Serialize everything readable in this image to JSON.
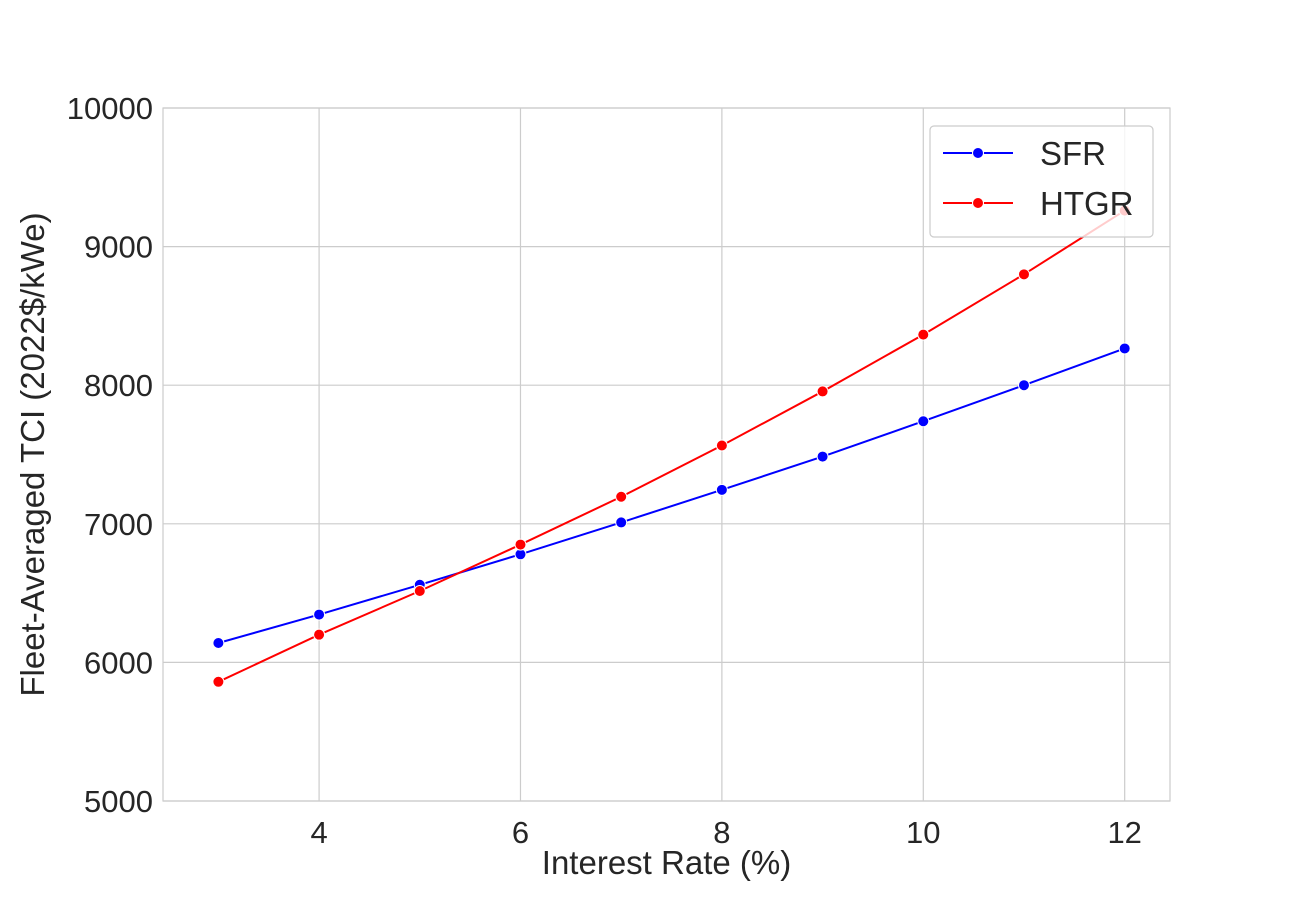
{
  "chart_data": {
    "type": "line",
    "title": "",
    "xlabel": "Interest Rate (%)",
    "ylabel": "Fleet-Averaged TCI (2022$/kWe)",
    "x": [
      3,
      4,
      5,
      6,
      7,
      8,
      9,
      10,
      11,
      12
    ],
    "xlim": [
      2.45,
      12.45
    ],
    "ylim": [
      5000,
      10000
    ],
    "xticks": [
      4,
      6,
      8,
      10,
      12
    ],
    "yticks": [
      5000,
      6000,
      7000,
      8000,
      9000,
      10000
    ],
    "grid": true,
    "legend_position": "top-right",
    "series": [
      {
        "name": "SFR",
        "color": "#0000ff",
        "values": [
          6140,
          6345,
          6560,
          6780,
          7010,
          7245,
          7485,
          7740,
          8000,
          8265
        ]
      },
      {
        "name": "HTGR",
        "color": "#ff0000",
        "values": [
          5860,
          6200,
          6515,
          6850,
          7195,
          7565,
          7955,
          8365,
          8800,
          9260
        ]
      }
    ]
  }
}
